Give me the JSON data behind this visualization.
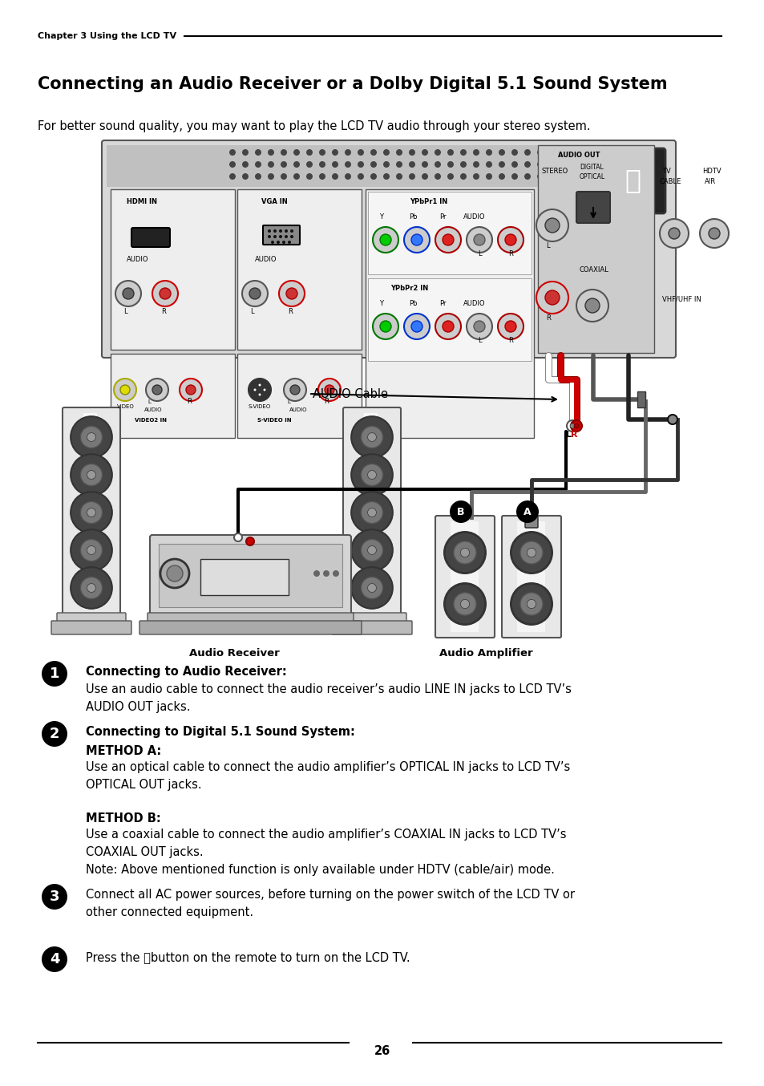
{
  "page_header": "Chapter 3 Using the LCD TV",
  "title": "Connecting an Audio Receiver or a Dolby Digital 5.1 Sound System",
  "intro_text": "For better sound quality, you may want to play the LCD TV audio through your stereo system.",
  "audio_cable_label": "AUDIO Cable",
  "audio_receiver_label": "Audio Receiver",
  "audio_amplifier_label": "Audio Amplifier",
  "step1_bold": "Connecting to Audio Receiver:",
  "step1_text": "Use an audio cable to connect the audio receiver’s audio LINE IN jacks to LCD TV’s\nAUDIO OUT jacks.",
  "step2_bold": "Connecting to Digital 5.1 Sound System:",
  "step2_methoda_bold": "METHOD A:",
  "step2_methoda_text": "Use an optical cable to connect the audio amplifier’s OPTICAL IN jacks to LCD TV’s\nOPTICAL OUT jacks.",
  "step2_methodb_bold": "METHOD B:",
  "step2_methodb_text": "Use a coaxial cable to connect the audio amplifier’s COAXIAL IN jacks to LCD TV’s\nCOAXIAL OUT jacks.\nNote: Above mentioned function is only available under HDTV (cable/air) mode.",
  "step3_text": "Connect all AC power sources, before turning on the power switch of the LCD TV or\nother connected equipment.",
  "step4_text": "Press the ⏻button on the remote to turn on the LCD TV.",
  "page_number": "26",
  "bg_color": "#ffffff",
  "text_color": "#000000",
  "line_color": "#000000"
}
